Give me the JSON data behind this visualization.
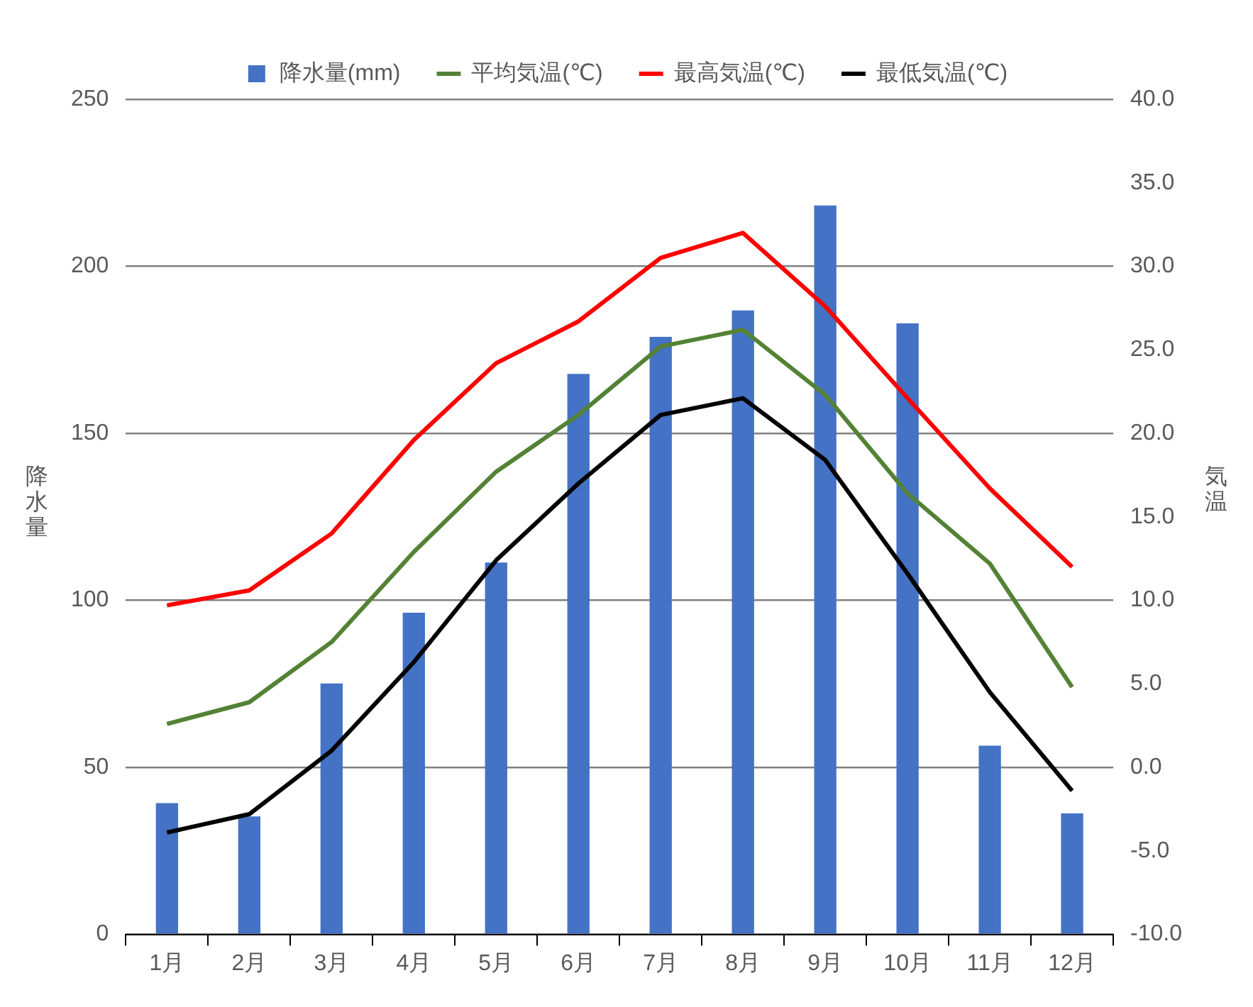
{
  "chart_data": {
    "type": "bar",
    "ylabel": "降水量",
    "y2label": "気温",
    "categories": [
      "1月",
      "2月",
      "3月",
      "4月",
      "5月",
      "6月",
      "7月",
      "8月",
      "9月",
      "10月",
      "11月",
      "12月"
    ],
    "series": [
      {
        "name": "降水量(mm)",
        "color": "#4472c4",
        "values": [
          39.3,
          35.3,
          75.1,
          96.3,
          111.3,
          167.8,
          178.9,
          186.8,
          218.2,
          182.9,
          56.5,
          36.2
        ]
      },
      {
        "name": "平均気温(℃)",
        "type": "line",
        "axis": "y2",
        "color": "#548235",
        "values": [
          2.6,
          3.9,
          7.5,
          12.9,
          17.7,
          21.1,
          25.2,
          26.2,
          22.3,
          16.4,
          12.2,
          4.8
        ]
      },
      {
        "name": "最高気温(℃)",
        "type": "line",
        "axis": "y2",
        "color": "#ff0000",
        "values": [
          9.7,
          10.6,
          14.0,
          19.6,
          24.2,
          26.7,
          30.5,
          32.0,
          27.6,
          22.1,
          16.7,
          12.0
        ]
      },
      {
        "name": "最低気温(℃)",
        "type": "line",
        "axis": "y2",
        "color": "#000000",
        "values": [
          -3.9,
          -2.8,
          1.0,
          6.3,
          12.4,
          17.0,
          21.1,
          22.1,
          18.4,
          11.6,
          4.5,
          -1.4
        ]
      }
    ],
    "ylim": [
      0,
      250
    ],
    "yticks": [
      0,
      50,
      100,
      150,
      200,
      250
    ],
    "y2lim": [
      -10,
      40
    ],
    "y2ticks": [
      {
        "value": -10,
        "label": "-10.0"
      },
      {
        "value": -5,
        "label": "-5.0"
      },
      {
        "value": 0,
        "label": "0.0"
      },
      {
        "value": 5,
        "label": "5.0"
      },
      {
        "value": 10,
        "label": "10.0"
      },
      {
        "value": 15,
        "label": "15.0"
      },
      {
        "value": 20,
        "label": "20.0"
      },
      {
        "value": 25,
        "label": "25.0"
      },
      {
        "value": 30,
        "label": "30.0"
      },
      {
        "value": 35,
        "label": "35.0"
      },
      {
        "value": 40,
        "label": "40.0"
      }
    ],
    "grid": "y",
    "legend": "top",
    "marker": "none",
    "line_style": "solid"
  }
}
